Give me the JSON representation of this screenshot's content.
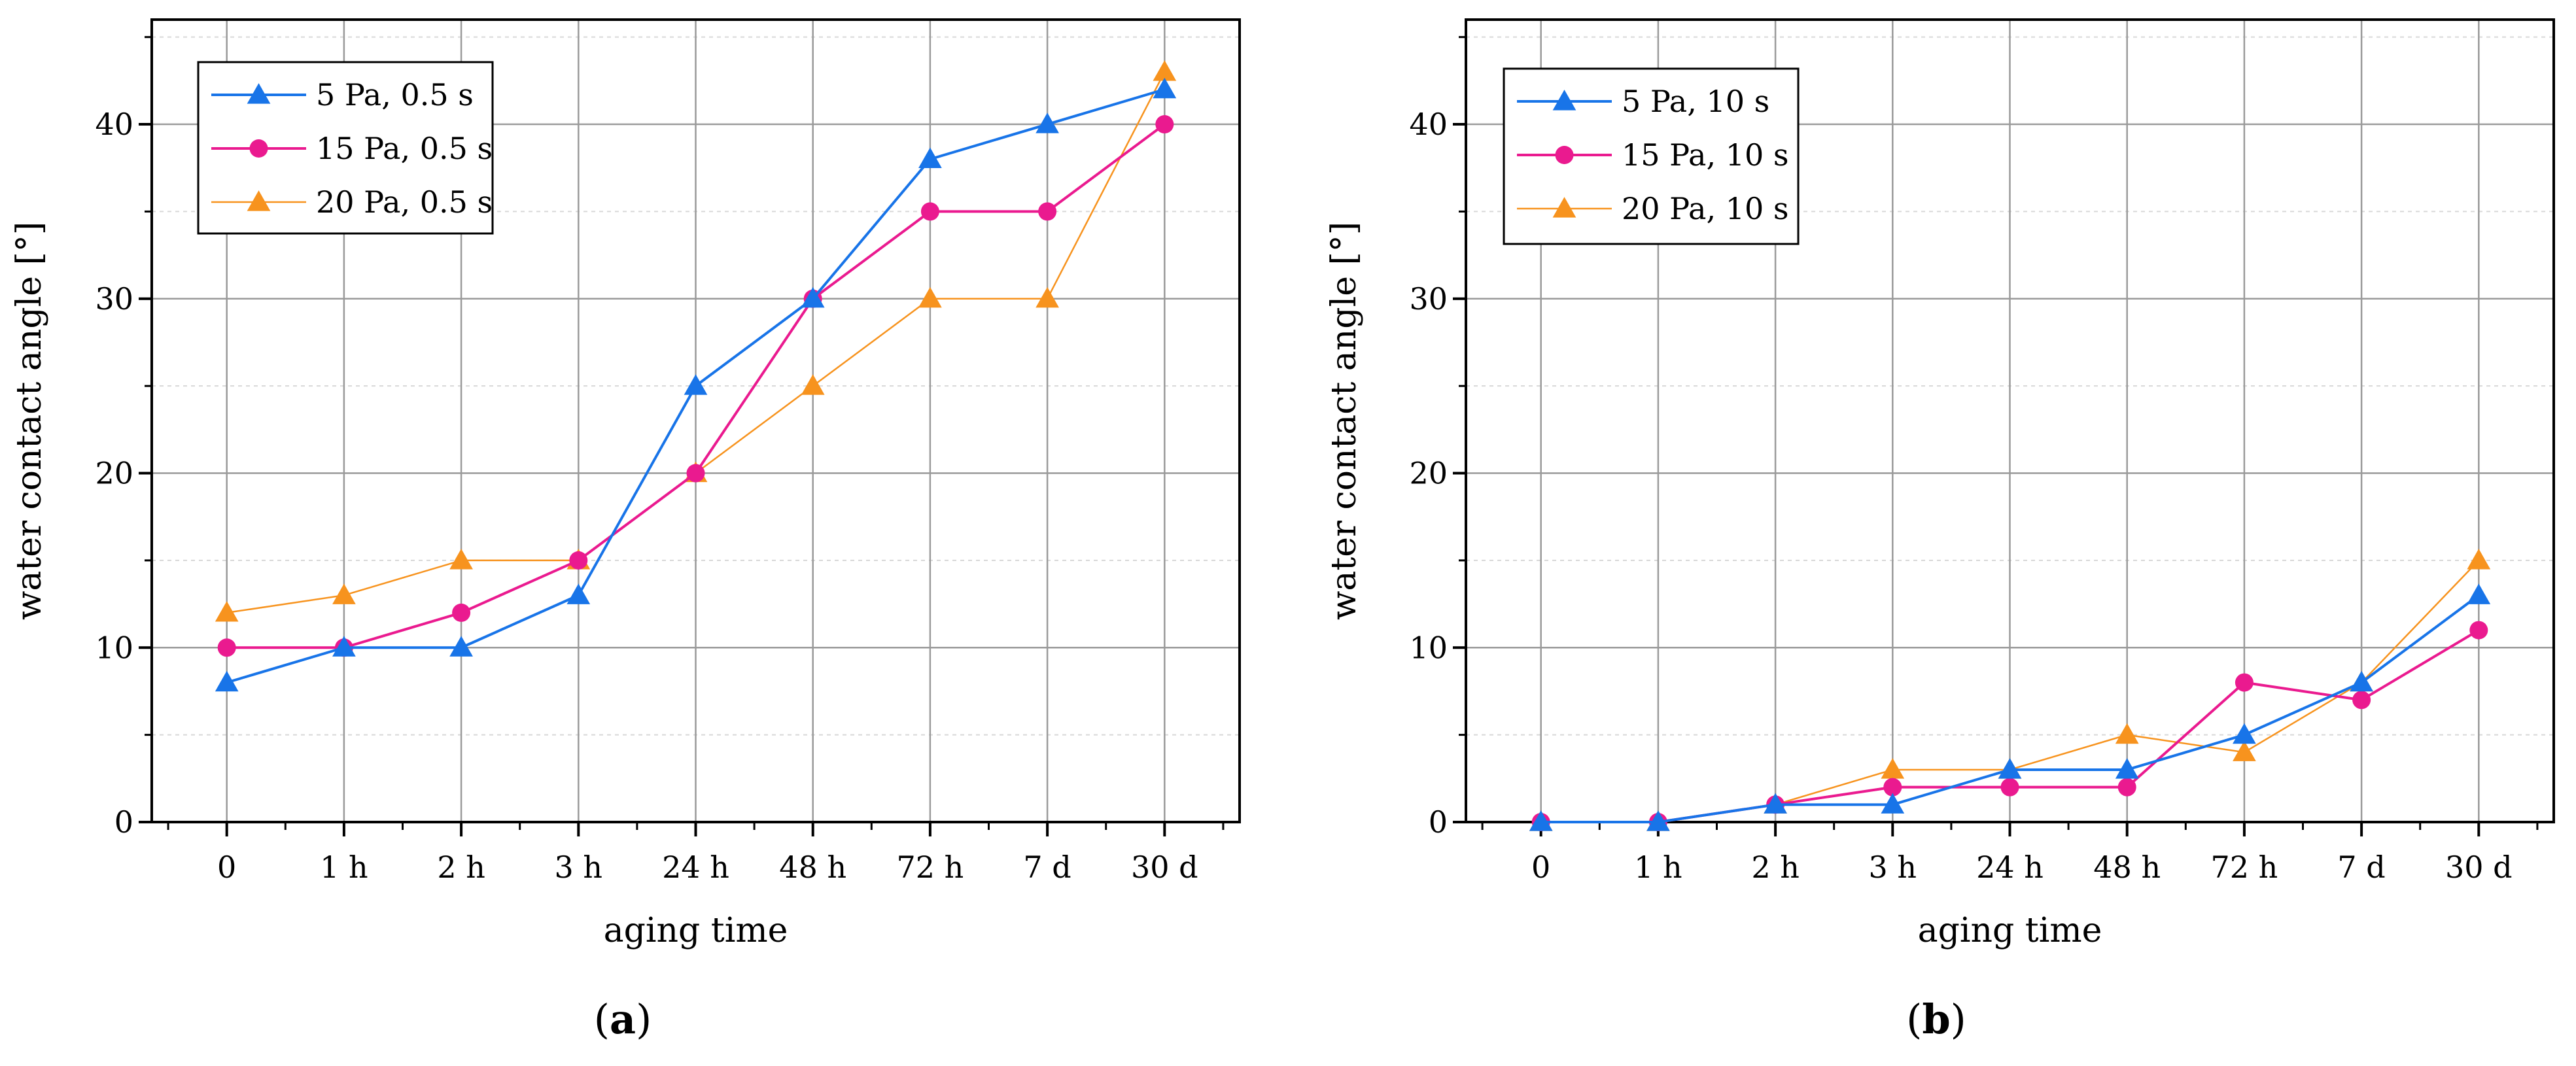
{
  "chart_data": [
    {
      "panel_label": "a",
      "type": "line",
      "categories": [
        "0",
        "1 h",
        "2 h",
        "3 h",
        "24 h",
        "48 h",
        "72 h",
        "7 d",
        "30 d"
      ],
      "xlabel": "aging time",
      "ylabel": "water contact angle [°]",
      "ylim": [
        0,
        46
      ],
      "yticks": [
        0,
        10,
        20,
        30,
        40
      ],
      "grid": true,
      "legend_position": "top-left",
      "series": [
        {
          "name": "5 Pa, 0.5 s",
          "marker": "triangle",
          "color": "#1874e8",
          "values": [
            8,
            10,
            10,
            13,
            25,
            30,
            38,
            40,
            42
          ]
        },
        {
          "name": "15 Pa, 0.5 s",
          "marker": "circle",
          "color": "#ea1a8f",
          "values": [
            10,
            10,
            12,
            15,
            20,
            30,
            35,
            35,
            40
          ]
        },
        {
          "name": "20 Pa, 0.5 s",
          "marker": "triangle",
          "color": "#f7931e",
          "values": [
            12,
            13,
            15,
            15,
            20,
            25,
            30,
            30,
            43
          ]
        }
      ]
    },
    {
      "panel_label": "b",
      "type": "line",
      "categories": [
        "0",
        "1 h",
        "2 h",
        "3 h",
        "24 h",
        "48 h",
        "72 h",
        "7 d",
        "30 d"
      ],
      "xlabel": "aging time",
      "ylabel": "water contact angle [°]",
      "ylim": [
        0,
        46
      ],
      "yticks": [
        0,
        10,
        20,
        30,
        40
      ],
      "grid": true,
      "legend_position": "top-left",
      "series": [
        {
          "name": "5 Pa, 10 s",
          "marker": "triangle",
          "color": "#1874e8",
          "values": [
            0,
            0,
            1,
            1,
            3,
            3,
            5,
            8,
            13
          ]
        },
        {
          "name": "15 Pa, 10 s",
          "marker": "circle",
          "color": "#ea1a8f",
          "values": [
            0,
            0,
            1,
            2,
            2,
            2,
            8,
            7,
            11
          ]
        },
        {
          "name": "20 Pa, 10 s",
          "marker": "triangle",
          "color": "#f7931e",
          "values": [
            0,
            0,
            1,
            3,
            3,
            5,
            4,
            8,
            15
          ]
        }
      ]
    }
  ]
}
